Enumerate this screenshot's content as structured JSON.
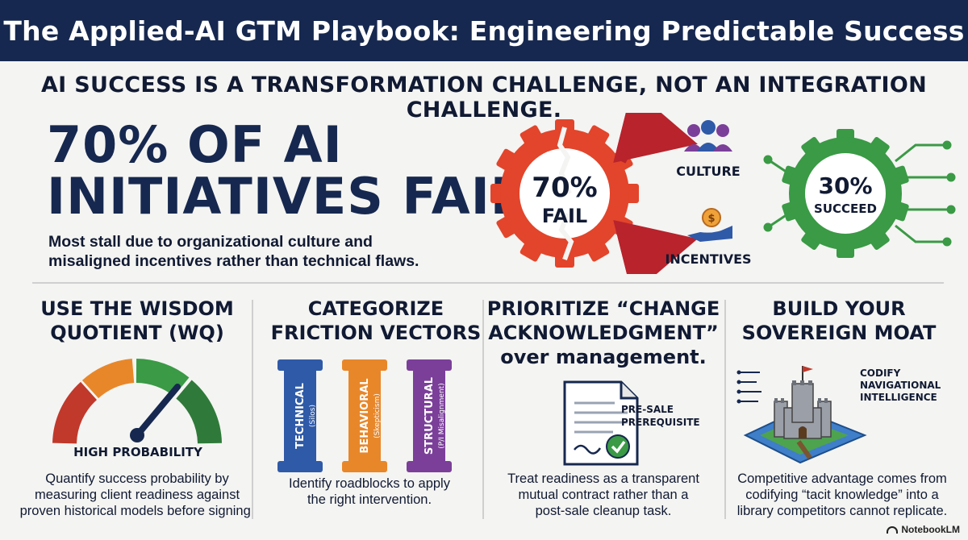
{
  "header": {
    "title": "The Applied-AI GTM Playbook: Engineering Predictable Success"
  },
  "tagline": "AI SUCCESS IS A TRANSFORMATION CHALLENGE, NOT AN INTEGRATION CHALLENGE.",
  "hero": {
    "headline_line1": "70% OF AI",
    "headline_line2": "INITIATIVES FAIL.",
    "subtext": "Most stall due to organizational culture and misaligned incentives rather than technical flaws.",
    "fail_pct": "70%",
    "fail_label": "FAIL",
    "succeed_pct": "30%",
    "succeed_label": "SUCCEED",
    "cause_culture": "CULTURE",
    "cause_incentives": "INCENTIVES"
  },
  "columns": [
    {
      "heading": "USE THE WISDOM\nQUOTIENT (WQ)",
      "visual_label": "HIGH PROBABILITY",
      "description": "Quantify success probability by\nmeasuring client readiness against\nproven historical models before signing."
    },
    {
      "heading": "CATEGORIZE\nFRICTION VECTORS",
      "pillars": [
        {
          "name": "TECHNICAL",
          "sub": "(Silos)",
          "color": "#2f5aa8"
        },
        {
          "name": "BEHAVIORAL",
          "sub": "(Skepticism)",
          "color": "#e8872a"
        },
        {
          "name": "STRUCTURAL",
          "sub": "(P/I Misalignment)",
          "color": "#7b3f99"
        }
      ],
      "description": "Identify roadblocks to apply\nthe right intervention."
    },
    {
      "heading": "PRIORITIZE “CHANGE\nACKNOWLEDGMENT”\nover management.",
      "doc_label": "PRE-SALE\nPREREQUISITE",
      "description": "Treat readiness as a transparent\nmutual contract rather than a\npost-sale cleanup task."
    },
    {
      "heading": "BUILD YOUR\nSOVEREIGN MOAT",
      "callout": "CODIFY\nNAVIGATIONAL\nINTELLIGENCE",
      "description": "Competitive advantage comes from\ncodifying “tacit knowledge” into a\nlibrary competitors cannot replicate."
    }
  ],
  "footer": {
    "brand": "NotebookLM"
  },
  "colors": {
    "navy": "#16284f",
    "fail_red": "#e2452b",
    "succeed_green": "#3a9a45",
    "arrow_red": "#b8232c"
  }
}
